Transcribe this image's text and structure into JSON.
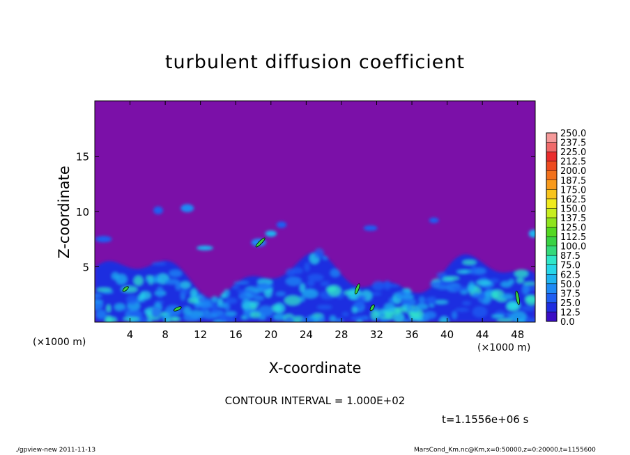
{
  "chart_data": {
    "type": "heatmap",
    "title": "turbulent diffusion coefficient",
    "xlabel": "X-coordinate",
    "ylabel": "Z-coordinate",
    "x_unit": "(×1000 m)",
    "xlim": [
      0,
      50
    ],
    "ylim": [
      0,
      20
    ],
    "xticks": [
      4,
      8,
      12,
      16,
      20,
      24,
      28,
      32,
      36,
      40,
      44,
      48
    ],
    "yticks": [
      5,
      10,
      15
    ],
    "colorbar_levels": [
      0.0,
      12.5,
      25.0,
      37.5,
      50.0,
      62.5,
      75.0,
      87.5,
      100.0,
      112.5,
      125.0,
      137.5,
      150.0,
      162.5,
      175.0,
      187.5,
      200.0,
      212.5,
      225.0,
      237.5,
      250.0
    ],
    "colorbar_colors": [
      "#7b10a8",
      "#3a0dc4",
      "#1f2de0",
      "#1f5ef2",
      "#1e8af5",
      "#1fb4f0",
      "#27d6e8",
      "#30e6c8",
      "#35d97a",
      "#39d243",
      "#54d821",
      "#8fe41e",
      "#c8ee1f",
      "#f0ea1d",
      "#f8c41c",
      "#f89a1c",
      "#f2711c",
      "#ee4a1f",
      "#ea2c2c",
      "#f06a6a",
      "#f59a9a"
    ],
    "background_value": 0.0,
    "contour_interval": "CONTOUR INTERVAL = 1.000E+02",
    "time": "t=1.1556e+06 s"
  },
  "footer": {
    "left": "./gpview-new   2011-11-13",
    "right": "MarsCond_Km.nc@Km,x=0:50000,z=0:20000,t=1155600"
  }
}
